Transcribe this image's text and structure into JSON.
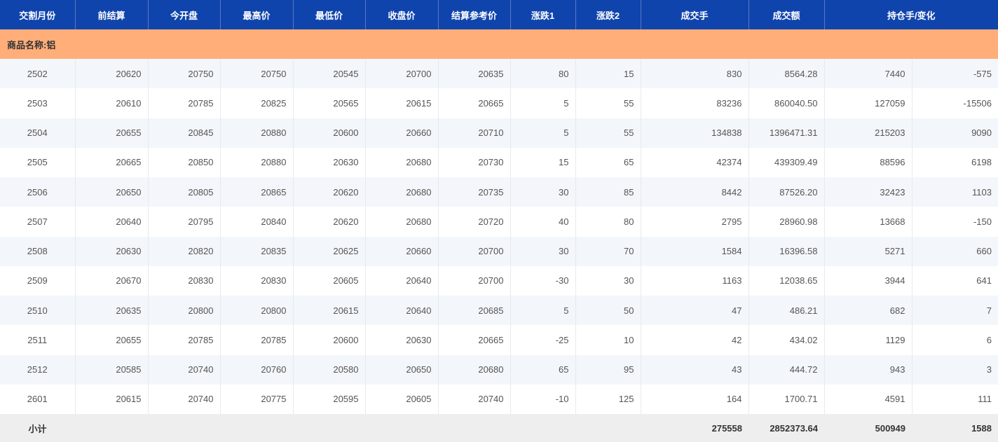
{
  "headers": [
    "交割月份",
    "前结算",
    "今开盘",
    "最高价",
    "最低价",
    "收盘价",
    "结算参考价",
    "涨跌1",
    "涨跌2",
    "成交手",
    "成交额",
    "持仓手/变化"
  ],
  "group_label": "商品名称:铝",
  "rows": [
    [
      "2502",
      "20620",
      "20750",
      "20750",
      "20545",
      "20700",
      "20635",
      "80",
      "15",
      "830",
      "8564.28",
      "7440",
      "-575"
    ],
    [
      "2503",
      "20610",
      "20785",
      "20825",
      "20565",
      "20615",
      "20665",
      "5",
      "55",
      "83236",
      "860040.50",
      "127059",
      "-15506"
    ],
    [
      "2504",
      "20655",
      "20845",
      "20880",
      "20600",
      "20660",
      "20710",
      "5",
      "55",
      "134838",
      "1396471.31",
      "215203",
      "9090"
    ],
    [
      "2505",
      "20665",
      "20850",
      "20880",
      "20630",
      "20680",
      "20730",
      "15",
      "65",
      "42374",
      "439309.49",
      "88596",
      "6198"
    ],
    [
      "2506",
      "20650",
      "20805",
      "20865",
      "20620",
      "20680",
      "20735",
      "30",
      "85",
      "8442",
      "87526.20",
      "32423",
      "1103"
    ],
    [
      "2507",
      "20640",
      "20795",
      "20840",
      "20620",
      "20680",
      "20720",
      "40",
      "80",
      "2795",
      "28960.98",
      "13668",
      "-150"
    ],
    [
      "2508",
      "20630",
      "20820",
      "20835",
      "20625",
      "20660",
      "20700",
      "30",
      "70",
      "1584",
      "16396.58",
      "5271",
      "660"
    ],
    [
      "2509",
      "20670",
      "20830",
      "20830",
      "20605",
      "20640",
      "20700",
      "-30",
      "30",
      "1163",
      "12038.65",
      "3944",
      "641"
    ],
    [
      "2510",
      "20635",
      "20800",
      "20800",
      "20615",
      "20640",
      "20685",
      "5",
      "50",
      "47",
      "486.21",
      "682",
      "7"
    ],
    [
      "2511",
      "20655",
      "20785",
      "20785",
      "20600",
      "20630",
      "20665",
      "-25",
      "10",
      "42",
      "434.02",
      "1129",
      "6"
    ],
    [
      "2512",
      "20585",
      "20740",
      "20760",
      "20580",
      "20650",
      "20680",
      "65",
      "95",
      "43",
      "444.72",
      "943",
      "3"
    ],
    [
      "2601",
      "20615",
      "20740",
      "20775",
      "20595",
      "20605",
      "20740",
      "-10",
      "125",
      "164",
      "1700.71",
      "4591",
      "111"
    ]
  ],
  "subtotal": {
    "label": "小计",
    "volume": "275558",
    "turnover": "2852373.64",
    "open_interest": "500949",
    "change": "1588"
  },
  "colors": {
    "header_bg": "#1044ad",
    "group_bg": "#ffae7a",
    "stripe": "#f3f6fa",
    "subtotal_bg": "#eeeeee"
  }
}
